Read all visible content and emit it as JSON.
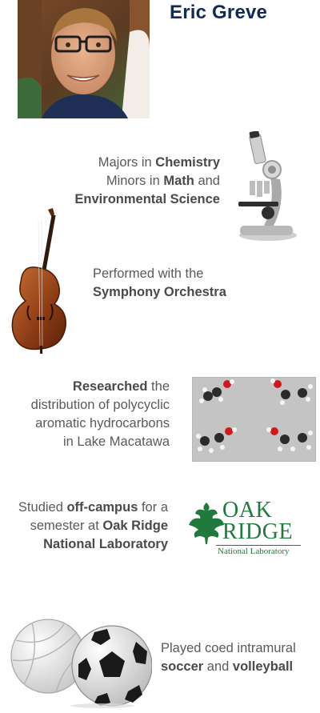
{
  "profile": {
    "name": "Eric Greve"
  },
  "items": [
    {
      "lines": [
        [
          {
            "t": "Majors in "
          },
          {
            "t": "Chemistry",
            "b": true
          }
        ],
        [
          {
            "t": "Minors in "
          },
          {
            "t": "Math",
            "b": true
          },
          {
            "t": " and"
          }
        ],
        [
          {
            "t": "Environmental Science",
            "b": true
          }
        ]
      ],
      "icon": "microscope-icon"
    },
    {
      "lines": [
        [
          {
            "t": "Performed with the"
          }
        ],
        [
          {
            "t": "Symphony Orchestra",
            "b": true
          }
        ]
      ],
      "icon": "double-bass-icon"
    },
    {
      "lines": [
        [
          {
            "t": "Researched",
            "b": true
          },
          {
            "t": " the"
          }
        ],
        [
          {
            "t": "distribution of polycyclic"
          }
        ],
        [
          {
            "t": "aromatic hydrocarbons"
          }
        ],
        [
          {
            "t": "in Lake Macatawa"
          }
        ]
      ],
      "icon": "molecules-icon"
    },
    {
      "lines": [
        [
          {
            "t": "Studied "
          },
          {
            "t": "off-campus",
            "b": true
          },
          {
            "t": " for a"
          }
        ],
        [
          {
            "t": "semester at "
          },
          {
            "t": "Oak Ridge",
            "b": true
          }
        ],
        [
          {
            "t": "National Laboratory",
            "b": true
          }
        ]
      ],
      "icon": "oak-ridge-logo"
    },
    {
      "lines": [
        [
          {
            "t": "Played coed intramural"
          }
        ],
        [
          {
            "t": "soccer",
            "b": true
          },
          {
            "t": " and "
          },
          {
            "t": "volleyball",
            "b": true
          }
        ]
      ],
      "icon": "sports-balls-icon"
    }
  ],
  "logo": {
    "line1": "OAK",
    "line2": "RIDGE",
    "line3": "National Laboratory"
  },
  "colors": {
    "name": "#152a52",
    "logo_green": "#1f7a3b",
    "text": "#5a5a5a"
  }
}
